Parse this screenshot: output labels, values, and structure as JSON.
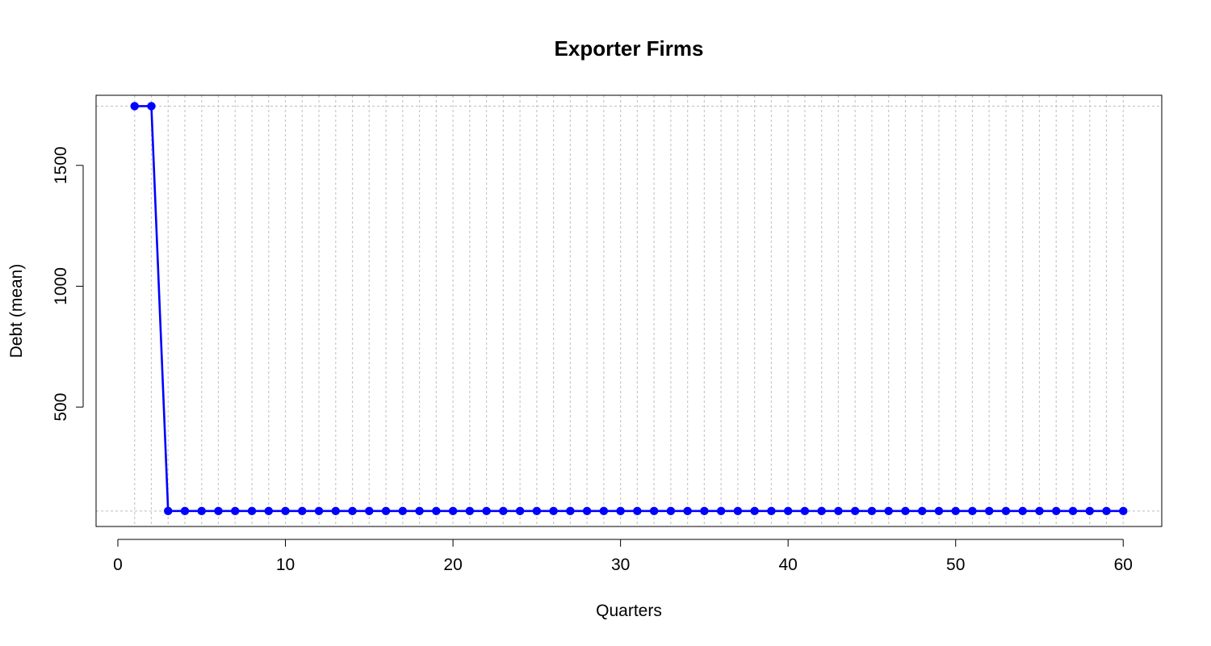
{
  "chart_data": {
    "type": "line",
    "title": "Exporter Firms",
    "xlabel": "Quarters",
    "ylabel": "Debt (mean)",
    "xlim": [
      -1.3,
      62.3
    ],
    "ylim": [
      6,
      1790
    ],
    "x_ticks": [
      0,
      10,
      20,
      30,
      40,
      50,
      60
    ],
    "y_ticks": [
      500,
      1000,
      1500
    ],
    "grid": true,
    "vertical_grid_step": 1,
    "horizontal_grid_values": [
      1745,
      70
    ],
    "series": [
      {
        "color": "#0000ff",
        "marker": "filled-circle",
        "x": [
          1,
          2,
          3,
          4,
          5,
          6,
          7,
          8,
          9,
          10,
          11,
          12,
          13,
          14,
          15,
          16,
          17,
          18,
          19,
          20,
          21,
          22,
          23,
          24,
          25,
          26,
          27,
          28,
          29,
          30,
          31,
          32,
          33,
          34,
          35,
          36,
          37,
          38,
          39,
          40,
          41,
          42,
          43,
          44,
          45,
          46,
          47,
          48,
          49,
          50,
          51,
          52,
          53,
          54,
          55,
          56,
          57,
          58,
          59,
          60
        ],
        "values": [
          1745,
          1745,
          70,
          70,
          70,
          70,
          70,
          70,
          70,
          70,
          70,
          70,
          70,
          70,
          70,
          70,
          70,
          70,
          70,
          70,
          70,
          70,
          70,
          70,
          70,
          70,
          70,
          70,
          70,
          70,
          70,
          70,
          70,
          70,
          70,
          70,
          70,
          70,
          70,
          70,
          70,
          70,
          70,
          70,
          70,
          70,
          70,
          70,
          70,
          70,
          70,
          70,
          70,
          70,
          70,
          70,
          70,
          70,
          70,
          70
        ]
      }
    ]
  }
}
